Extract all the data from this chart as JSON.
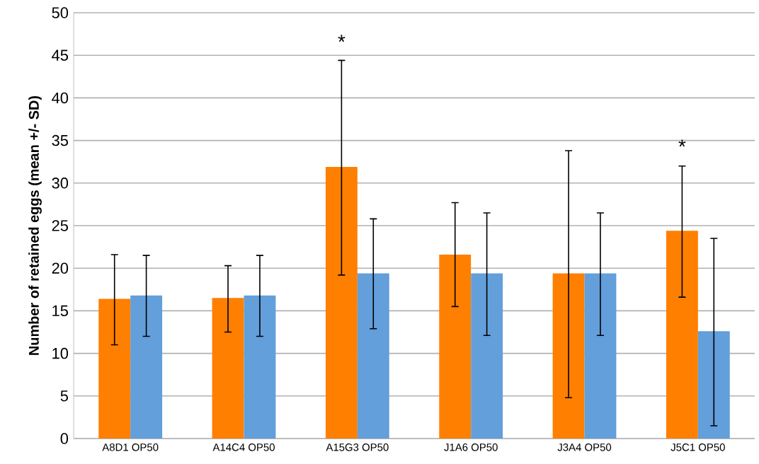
{
  "chart_data": {
    "type": "bar",
    "ylabel": "Number of retained eggs (mean +/- SD)",
    "categories": [
      "A8D1 OP50",
      "A14C4 OP50",
      "A15G3 OP50",
      "J1A6 OP50",
      "J3A4 OP50",
      "J5C1 OP50"
    ],
    "series": [
      {
        "color": "#ff7f00",
        "values": [
          16.4,
          16.5,
          31.9,
          21.6,
          19.4,
          24.4
        ],
        "errors": [
          [
            11.0,
            21.6
          ],
          [
            12.5,
            20.3
          ],
          [
            19.2,
            44.4
          ],
          [
            15.5,
            27.7
          ],
          [
            4.8,
            33.8
          ],
          [
            16.6,
            32.0
          ]
        ]
      },
      {
        "color": "#629fdb",
        "values": [
          16.8,
          16.8,
          19.4,
          19.4,
          19.4,
          12.6
        ],
        "errors": [
          [
            12.0,
            21.5
          ],
          [
            12.0,
            21.5
          ],
          [
            12.9,
            25.8
          ],
          [
            12.1,
            26.5
          ],
          [
            12.1,
            26.5
          ],
          [
            1.5,
            23.5
          ]
        ]
      }
    ],
    "ylim": [
      0,
      50
    ],
    "yticks": [
      0,
      5,
      10,
      15,
      20,
      25,
      30,
      35,
      40,
      45,
      50
    ],
    "grid": "y",
    "annotations": [
      "*",
      "*"
    ]
  }
}
